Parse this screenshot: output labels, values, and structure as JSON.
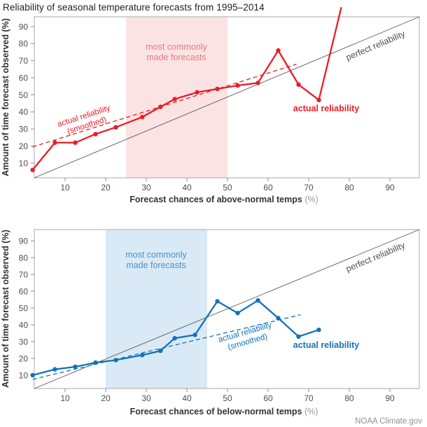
{
  "title": "Reliability of seasonal temperature forecasts from 1995–2014",
  "credit": "NOAA Climate.gov",
  "chart_data": [
    {
      "type": "line",
      "panel": "above-normal",
      "xlabel": "Forecast chances of above-normal temps",
      "xlabel_unit": "(%)",
      "ylabel": "Amount of time forecast observed (%)",
      "xlim": [
        2,
        96.5
      ],
      "ylim": [
        2,
        96.5
      ],
      "xticks": [
        10,
        20,
        30,
        40,
        50,
        60,
        70,
        80,
        90
      ],
      "yticks": [
        10,
        20,
        30,
        40,
        50,
        60,
        70,
        80,
        90
      ],
      "grid": false,
      "legend_position": "inline-annotations",
      "shaded_region": {
        "x0": 25,
        "x1": 50,
        "label_lines": [
          "most commonly",
          "made forecasts"
        ]
      },
      "series": [
        {
          "name": "actual reliability",
          "style": "solid-with-markers",
          "x": [
            2,
            7.5,
            12.5,
            17.5,
            22.5,
            29,
            33.5,
            37,
            42.5,
            47.5,
            52.5,
            57.5,
            62.5,
            67.5,
            72.5,
            78
          ],
          "y": [
            6,
            22,
            22,
            27,
            31,
            37,
            43,
            47.5,
            51.5,
            53.5,
            55.5,
            57,
            76,
            56,
            47,
            101
          ]
        },
        {
          "name": "actual reliability (smoothed)",
          "style": "dashed",
          "x": [
            2,
            67
          ],
          "y": [
            19.5,
            68
          ]
        },
        {
          "name": "perfect reliability",
          "style": "diagonal-reference-y-equals-x"
        }
      ],
      "annotations": {
        "smoothed_line1": "actual reliability",
        "smoothed_line2": "(smoothed)",
        "series_label": "actual reliability",
        "diagonal_label": "perfect reliability"
      },
      "colors": {
        "line": "#ed1c24",
        "region_fill": "#fbe3e4",
        "region_text": "#f0787c"
      }
    },
    {
      "type": "line",
      "panel": "below-normal",
      "xlabel": "Forecast chances of below-normal temps",
      "xlabel_unit": "(%)",
      "ylabel": "Amount of time forecast observed (%)",
      "xlim": [
        2,
        96.5
      ],
      "ylim": [
        2,
        96.5
      ],
      "xticks": [
        10,
        20,
        30,
        40,
        50,
        60,
        70,
        80,
        90
      ],
      "yticks": [
        10,
        20,
        30,
        40,
        50,
        60,
        70,
        80,
        90
      ],
      "grid": false,
      "legend_position": "inline-annotations",
      "shaded_region": {
        "x0": 20,
        "x1": 45,
        "label_lines": [
          "most commonly",
          "made forecasts"
        ]
      },
      "series": [
        {
          "name": "actual reliability",
          "style": "solid-with-markers",
          "x": [
            2,
            7.5,
            12.5,
            17.5,
            22.5,
            29,
            33.5,
            37,
            42,
            47.5,
            52.5,
            57.5,
            62.5,
            67.5,
            72.5
          ],
          "y": [
            10,
            13.5,
            15,
            17.5,
            19,
            22,
            24.5,
            32,
            34,
            54,
            47,
            54.5,
            44,
            33,
            37
          ]
        },
        {
          "name": "actual reliability (smoothed)",
          "style": "dashed",
          "x": [
            2,
            68
          ],
          "y": [
            7.5,
            46
          ]
        },
        {
          "name": "perfect reliability",
          "style": "diagonal-reference-y-equals-x"
        }
      ],
      "annotations": {
        "smoothed_line1": "actual reliability",
        "smoothed_line2": "(smoothed)",
        "series_label": "actual reliability",
        "diagonal_label": "perfect reliability"
      },
      "colors": {
        "line": "#1173b8",
        "region_fill": "#dae9f6",
        "region_text": "#4594cb"
      }
    }
  ]
}
